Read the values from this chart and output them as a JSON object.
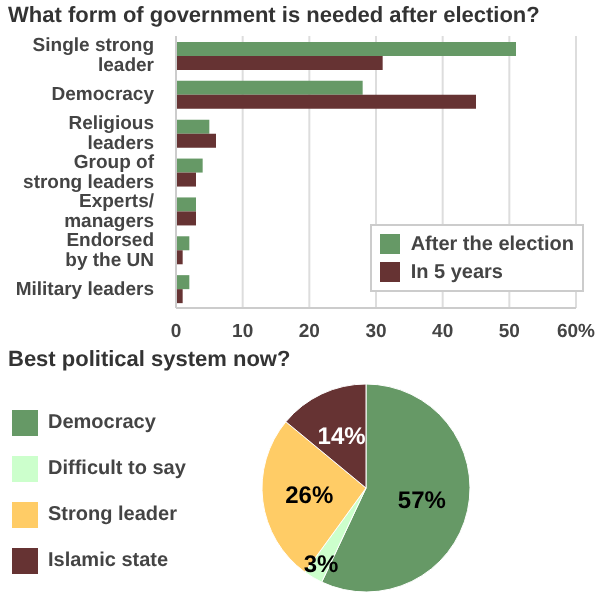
{
  "chart_data": [
    {
      "type": "bar",
      "orientation": "horizontal",
      "title": "What form of government is needed after election?",
      "categories": [
        "Single strong leader",
        "Democracy",
        "Religious leaders",
        "Group of strong leaders",
        "Experts/ managers",
        "Endorsed by the UN",
        "Military leaders"
      ],
      "series": [
        {
          "name": "After the election",
          "color": "#669966",
          "values": [
            51,
            28,
            5,
            4,
            3,
            2,
            2
          ]
        },
        {
          "name": "In 5 years",
          "color": "#663333",
          "values": [
            31,
            45,
            6,
            3,
            3,
            1,
            1
          ]
        }
      ],
      "xlim": [
        0,
        60
      ],
      "xticks": [
        0,
        10,
        20,
        30,
        40,
        50,
        {
          "value": 60,
          "label": "60%"
        }
      ],
      "grid": "x",
      "legend": "bottom right"
    },
    {
      "type": "pie",
      "title": "Best political system now?",
      "categories": [
        "Democracy",
        "Difficult to say",
        "Strong leader",
        "Islamic state"
      ],
      "values": [
        57,
        3,
        26,
        14
      ],
      "colors": [
        "#669966",
        "#ccffcc",
        "#ffcc66",
        "#663333"
      ],
      "value_labels": [
        "57%",
        "3%",
        "26%",
        "14%"
      ],
      "legend": "left"
    }
  ]
}
